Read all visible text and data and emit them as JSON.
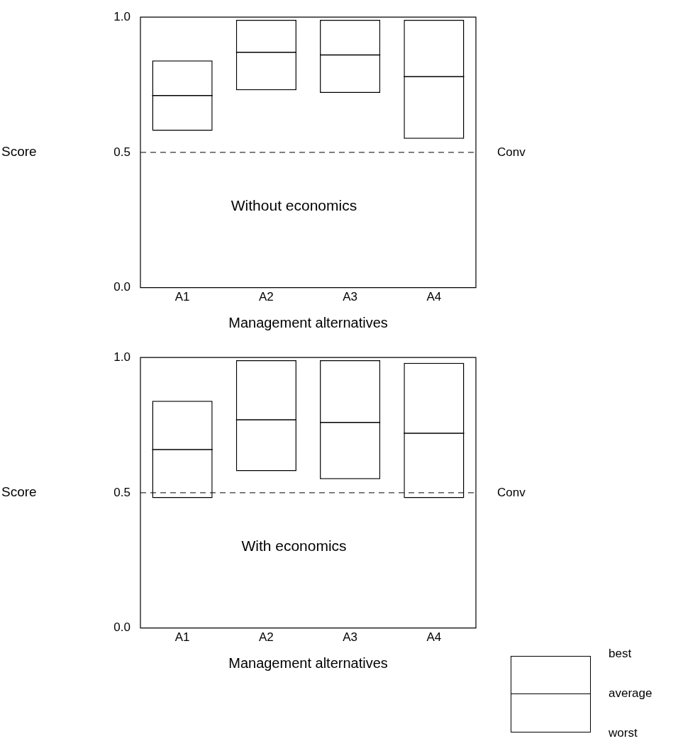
{
  "chart_data": [
    {
      "type": "box",
      "categories": [
        "A1",
        "A2",
        "A3",
        "A4"
      ],
      "xlabel": "Management alternatives",
      "ylabel": "Score",
      "ylim": [
        0,
        1
      ],
      "yticks": [
        {
          "value": 0,
          "label": "0.0"
        },
        {
          "value": 0.5,
          "label": "0.5"
        },
        {
          "value": 1,
          "label": "1.0"
        }
      ],
      "grid": false,
      "boxes": [
        {
          "low": 0.58,
          "q1": 0.58,
          "median": 0.71,
          "q3": 0.84,
          "high": 0.84
        },
        {
          "low": 0.73,
          "q1": 0.73,
          "median": 0.87,
          "q3": 0.99,
          "high": 0.99
        },
        {
          "low": 0.72,
          "q1": 0.72,
          "median": 0.86,
          "q3": 0.99,
          "high": 0.99
        },
        {
          "low": 0.55,
          "q1": 0.55,
          "median": 0.78,
          "q3": 0.99,
          "high": 0.99
        }
      ],
      "ref_lines": [
        {
          "axis": "y",
          "value": 0.5,
          "label": "Conv",
          "line_style": "dashed"
        }
      ],
      "annotations": [
        "Without economics"
      ]
    },
    {
      "type": "box",
      "categories": [
        "A1",
        "A2",
        "A3",
        "A4"
      ],
      "xlabel": "Management alternatives",
      "ylabel": "Score",
      "ylim": [
        0,
        1
      ],
      "yticks": [
        {
          "value": 0,
          "label": "0.0"
        },
        {
          "value": 0.5,
          "label": "0.5"
        },
        {
          "value": 1,
          "label": "1.0"
        }
      ],
      "grid": false,
      "boxes": [
        {
          "low": 0.48,
          "q1": 0.48,
          "median": 0.66,
          "q3": 0.84,
          "high": 0.84
        },
        {
          "low": 0.58,
          "q1": 0.58,
          "median": 0.77,
          "q3": 0.99,
          "high": 0.99
        },
        {
          "low": 0.55,
          "q1": 0.55,
          "median": 0.76,
          "q3": 0.99,
          "high": 0.99
        },
        {
          "low": 0.48,
          "q1": 0.48,
          "median": 0.72,
          "q3": 0.98,
          "high": 0.98
        }
      ],
      "ref_lines": [
        {
          "axis": "y",
          "value": 0.5,
          "label": "Conv",
          "line_style": "dashed"
        }
      ],
      "annotations": [
        "With economics"
      ]
    },
    {
      "type": "other",
      "annotations": [
        "best",
        "average",
        "worst"
      ]
    }
  ]
}
